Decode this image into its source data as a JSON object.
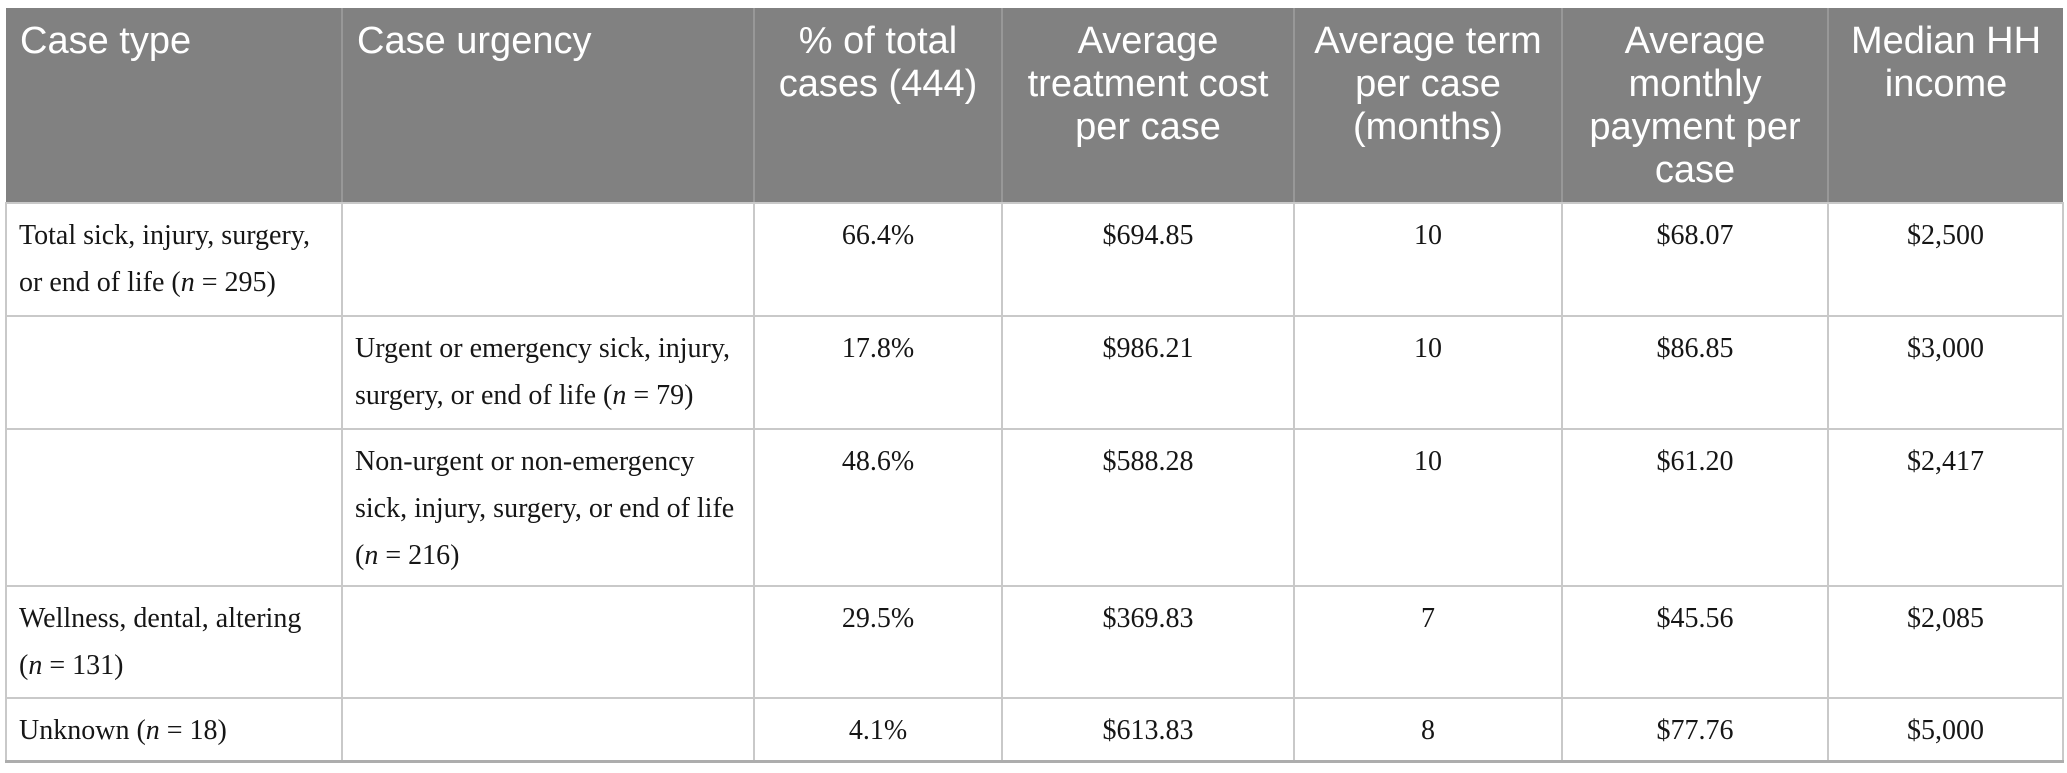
{
  "colors": {
    "header_background": "#818181",
    "header_text": "#ffffff",
    "header_divider": "#989898",
    "body_border": "#c9c9c9",
    "table_bottom_border": "#adadad",
    "body_text": "#161616"
  },
  "table": {
    "columns": {
      "case_type": "Case type",
      "case_urgency": "Case urgency",
      "pct_of_total_cases": "% of total\ncases (444)",
      "avg_treatment_cost": "Average\ntreatment cost\nper case",
      "avg_term_months": "Average term\nper case\n(months)",
      "avg_monthly_payment": "Average\nmonthly\npayment per\ncase",
      "median_hh_income": "Median HH\nincome"
    },
    "rows": [
      {
        "case_type": "Total sick, injury, surgery,\nor end of life (<i>n</i> = 295)",
        "case_urgency": "",
        "pct_of_total_cases": "66.4%",
        "avg_treatment_cost": "$694.85",
        "avg_term_months": "10",
        "avg_monthly_payment": "$68.07",
        "median_hh_income": "$2,500"
      },
      {
        "case_type": "",
        "case_urgency": "Urgent or emergency sick, injury,\nsurgery, or end of life (<i>n</i> = 79)",
        "pct_of_total_cases": "17.8%",
        "avg_treatment_cost": "$986.21",
        "avg_term_months": "10",
        "avg_monthly_payment": "$86.85",
        "median_hh_income": "$3,000"
      },
      {
        "case_type": "",
        "case_urgency": "Non-urgent or non-emergency\nsick, injury, surgery, or end of life\n(<i>n</i> = 216)",
        "pct_of_total_cases": "48.6%",
        "avg_treatment_cost": "$588.28",
        "avg_term_months": "10",
        "avg_monthly_payment": "$61.20",
        "median_hh_income": "$2,417"
      },
      {
        "case_type": "Wellness, dental, altering\n(<i>n</i> = 131)",
        "case_urgency": "",
        "pct_of_total_cases": "29.5%",
        "avg_treatment_cost": "$369.83",
        "avg_term_months": "7",
        "avg_monthly_payment": "$45.56",
        "median_hh_income": "$2,085"
      },
      {
        "case_type": "Unknown (<i>n</i> = 18)",
        "case_urgency": "",
        "pct_of_total_cases": "4.1%",
        "avg_treatment_cost": "$613.83",
        "avg_term_months": "8",
        "avg_monthly_payment": "$77.76",
        "median_hh_income": "$5,000"
      }
    ]
  }
}
